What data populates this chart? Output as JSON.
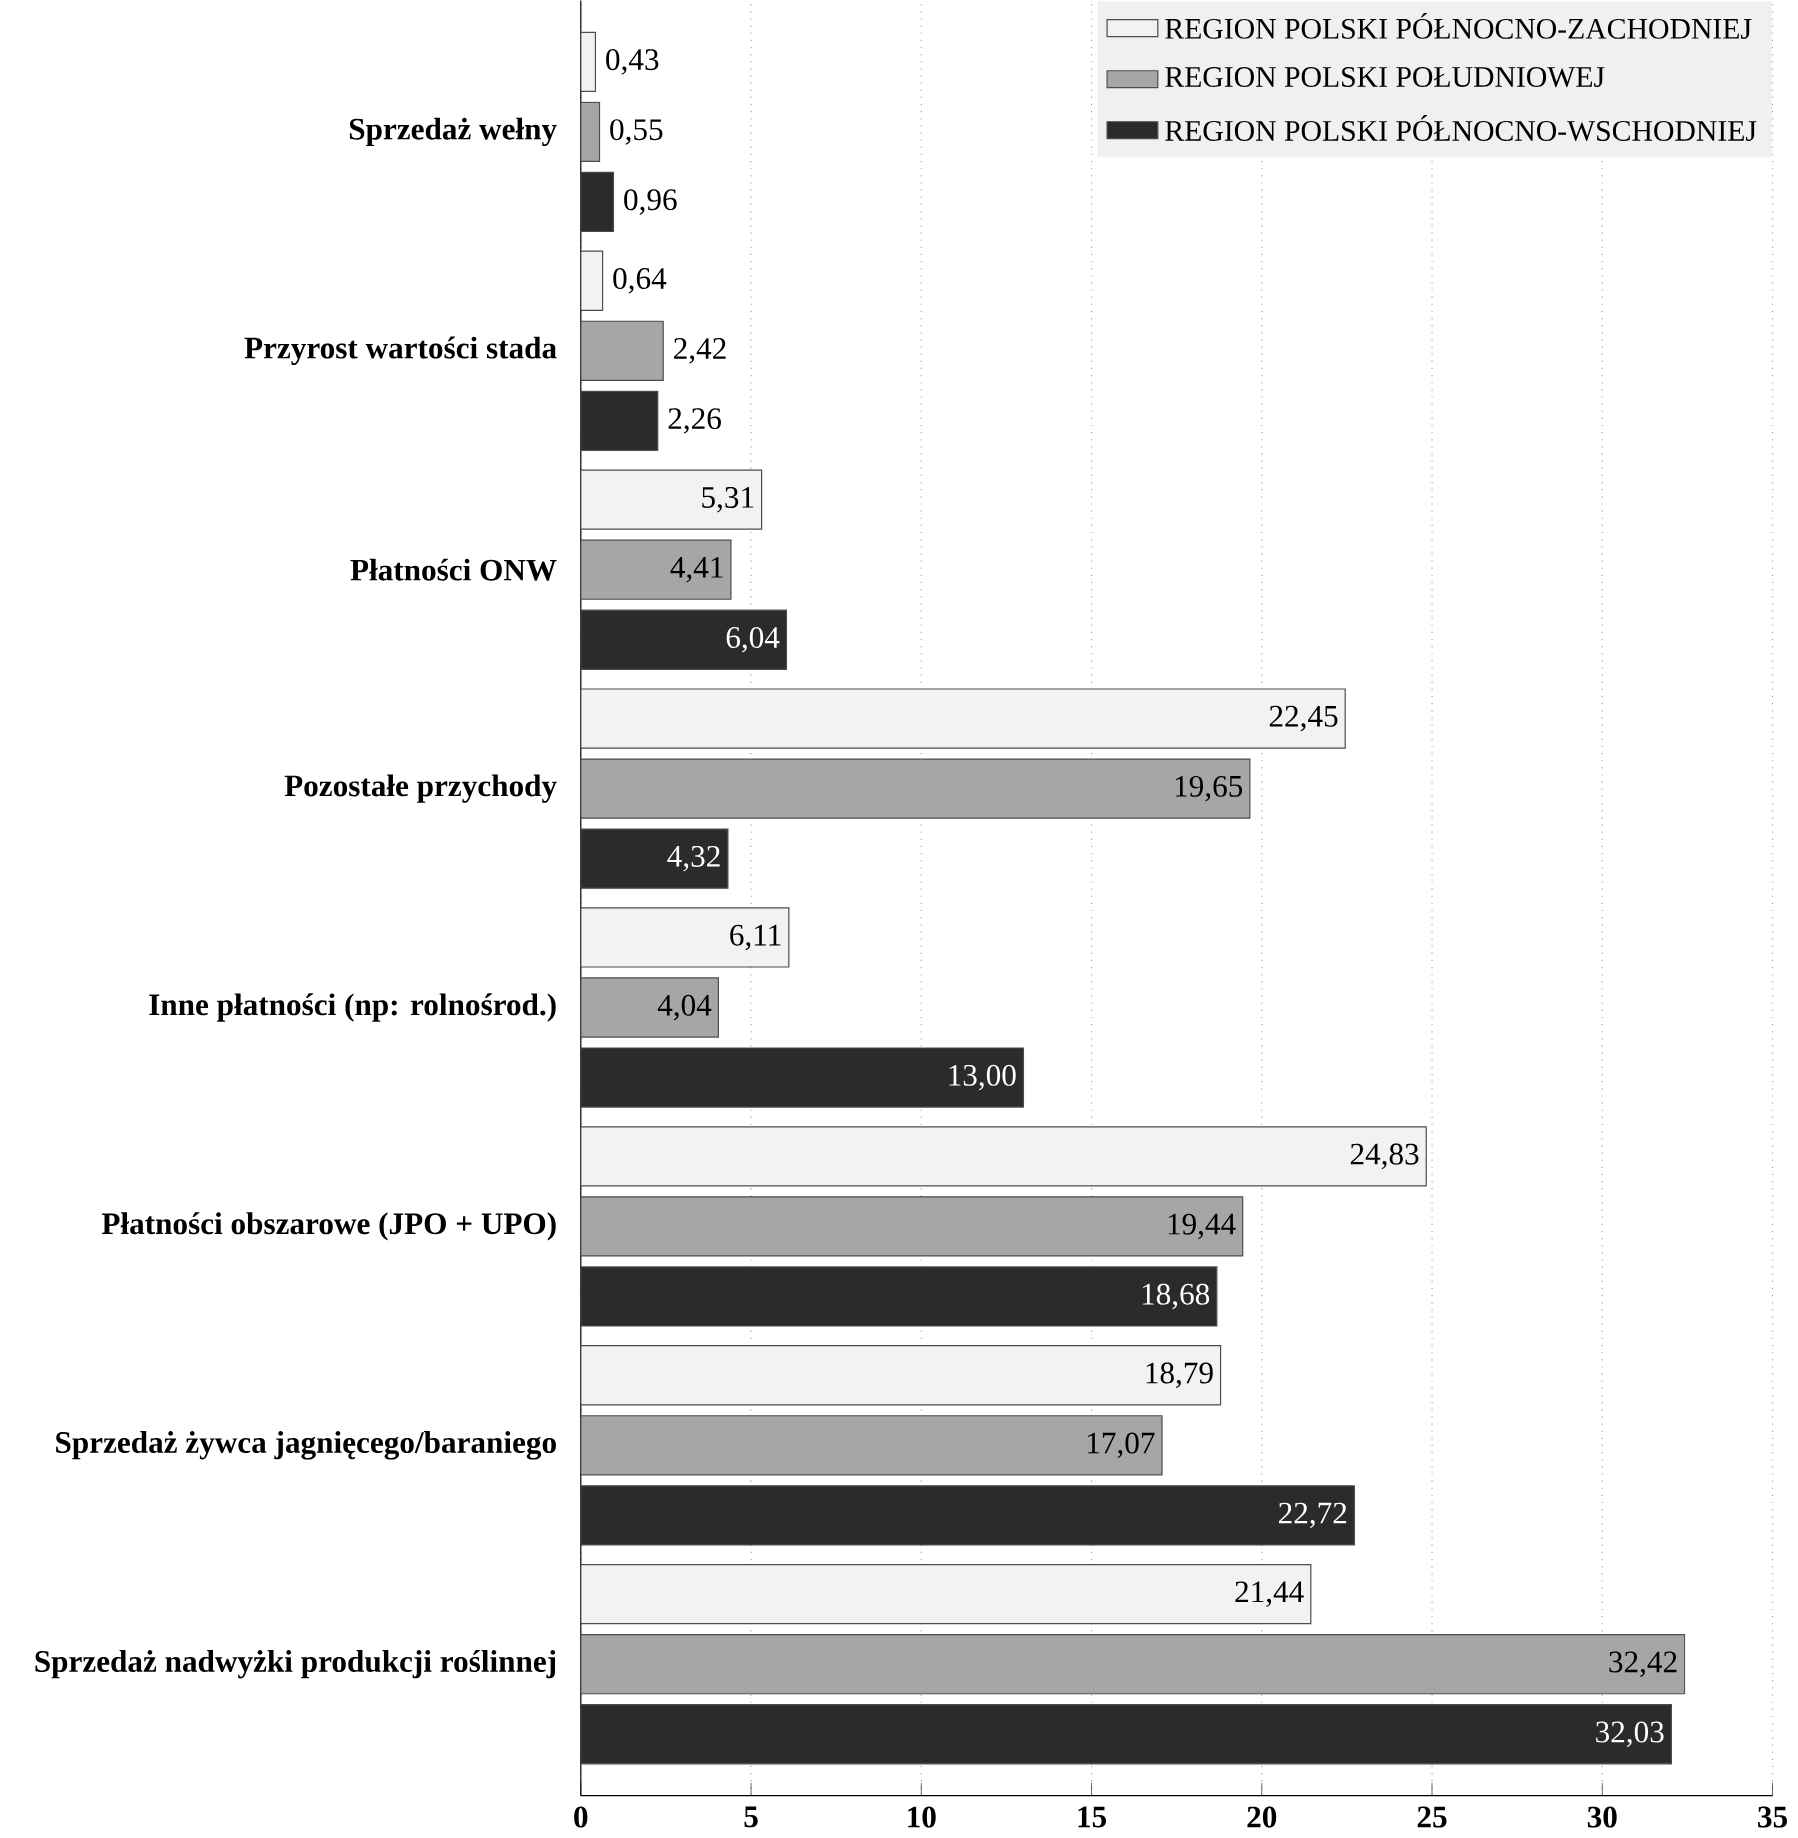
{
  "chart_data": {
    "type": "bar",
    "orientation": "horizontal",
    "categories": [
      "Sprzedaż wełny",
      "Przyrost wartości stada",
      "Płatności ONW",
      "Pozostałe przychody",
      "Inne płatności (np: rolnośrod.)",
      "Płatności obszarowe (JPO + UPO)",
      "Sprzedaż żywca jagnięcego/baraniego",
      "Sprzedaż nadwyżki produkcji roślinnej"
    ],
    "series": [
      {
        "name": "REGION POLSKI PÓŁNOCNO-ZACHODNIEJ",
        "color": "#f2f2f2",
        "values": [
          0.43,
          0.64,
          5.31,
          22.45,
          6.11,
          24.83,
          18.79,
          21.44
        ],
        "value_labels": [
          "0,43",
          "0,64",
          "5,31",
          "22,45",
          "6,11",
          "24,83",
          "18,79",
          "21,44"
        ]
      },
      {
        "name": "REGION POLSKI POŁUDNIOWEJ",
        "color": "#a6a6a6",
        "values": [
          0.55,
          2.42,
          4.41,
          19.65,
          4.04,
          19.44,
          17.07,
          32.42
        ],
        "value_labels": [
          "0,55",
          "2,42",
          "4,41",
          "19,65",
          "4,04",
          "19,44",
          "17,07",
          "32,42"
        ]
      },
      {
        "name": "REGION POLSKI PÓŁNOCNO-WSCHODNIEJ",
        "color": "#2b2b2b",
        "values": [
          0.96,
          2.26,
          6.04,
          4.32,
          13.0,
          18.68,
          22.72,
          32.03
        ],
        "value_labels": [
          "0,96",
          "2,26",
          "6,04",
          "4,32",
          "13,00",
          "18,68",
          "22,72",
          "32,03"
        ]
      }
    ],
    "xlim": [
      0,
      35
    ],
    "xticks": [
      0,
      5,
      10,
      15,
      20,
      25,
      30,
      35
    ],
    "grid": "x",
    "legend": "top right"
  }
}
